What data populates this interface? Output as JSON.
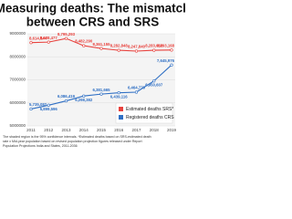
{
  "chart_data": {
    "type": "line",
    "title": "Measuring deaths: The mismatch",
    "subtitle": "between CRS and SRS",
    "categories": [
      "2011",
      "2012",
      "2013",
      "2014",
      "2015",
      "2016",
      "2017",
      "2018",
      "2019"
    ],
    "series": [
      {
        "name": "Estimated deaths SRS*",
        "color": "#e8413c",
        "values": [
          8614844,
          8638477,
          8795293,
          8482290,
          8361155,
          8282848,
          8247840,
          8283068,
          8293168
        ],
        "value_labels": [
          "8,614,844",
          "8,638,477",
          "8,795,293",
          "8,482,290",
          "8,361,155",
          "8,282,848",
          "8,247,840",
          "8,283,068",
          "8,293,168"
        ]
      },
      {
        "name": "Registered deaths CRS",
        "color": "#2f6fc4",
        "values": [
          5735082,
          5899596,
          6086419,
          6298382,
          6381665,
          6439116,
          6464779,
          6950607,
          7645976
        ],
        "value_labels": [
          "5,735,082",
          "5,899,596",
          "6,086,419",
          "6,298,382",
          "6,381,665",
          "6,439,116",
          "6,464,779",
          "6,950,607",
          "7,645,976"
        ]
      }
    ],
    "ylim": [
      5000000,
      9000000
    ],
    "yticks": [
      5000000,
      6000000,
      7000000,
      8000000,
      9000000
    ],
    "grid": true,
    "legend": "lower right",
    "notes": [
      "The shaded region is the 95% confidence intervals. *Estimated deaths based on SRS-estimated death",
      "rate x Mid-year population based on revised population projection figures released under Report",
      "Population Projections India and States, 2011-2036"
    ]
  }
}
